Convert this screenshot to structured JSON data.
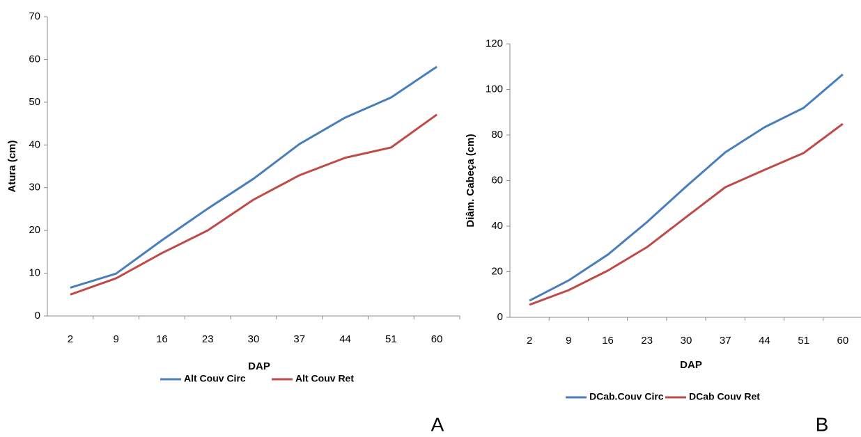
{
  "chart_data": [
    {
      "type": "line",
      "panel_label": "A",
      "xlabel": "DAP",
      "ylabel": "Atura  (cm)",
      "categories": [
        2,
        9,
        16,
        23,
        30,
        37,
        44,
        51,
        60
      ],
      "ylim": [
        0,
        70
      ],
      "yticks": [
        0,
        10,
        20,
        30,
        40,
        50,
        60,
        70
      ],
      "series": [
        {
          "name": "Alt Couv Circ",
          "color": "#4a7ebb",
          "values": [
            6.6,
            9.9,
            17.7,
            25.1,
            32.1,
            40.2,
            46.4,
            51.1,
            58.3
          ]
        },
        {
          "name": "Alt Couv Ret",
          "color": "#be4b48",
          "values": [
            5.0,
            8.8,
            14.7,
            20.0,
            27.2,
            32.9,
            37.0,
            39.4,
            47.1
          ]
        }
      ]
    },
    {
      "type": "line",
      "panel_label": "B",
      "xlabel": "DAP",
      "ylabel": "Diâm. Cabeça (cm)",
      "categories": [
        2,
        9,
        16,
        23,
        30,
        37,
        44,
        51,
        60
      ],
      "ylim": [
        0,
        120
      ],
      "yticks": [
        0,
        20,
        40,
        60,
        80,
        100,
        120
      ],
      "series": [
        {
          "name": "DCab.Couv Circ",
          "color": "#4a7ebb",
          "values": [
            7.3,
            16.2,
            27.5,
            41.8,
            57.4,
            72.4,
            83.4,
            91.9,
            106.6
          ]
        },
        {
          "name": "DCab Couv Ret",
          "color": "#be4b48",
          "values": [
            5.5,
            11.9,
            20.5,
            30.8,
            44.0,
            57.1,
            64.7,
            72.1,
            84.9
          ]
        }
      ]
    }
  ]
}
